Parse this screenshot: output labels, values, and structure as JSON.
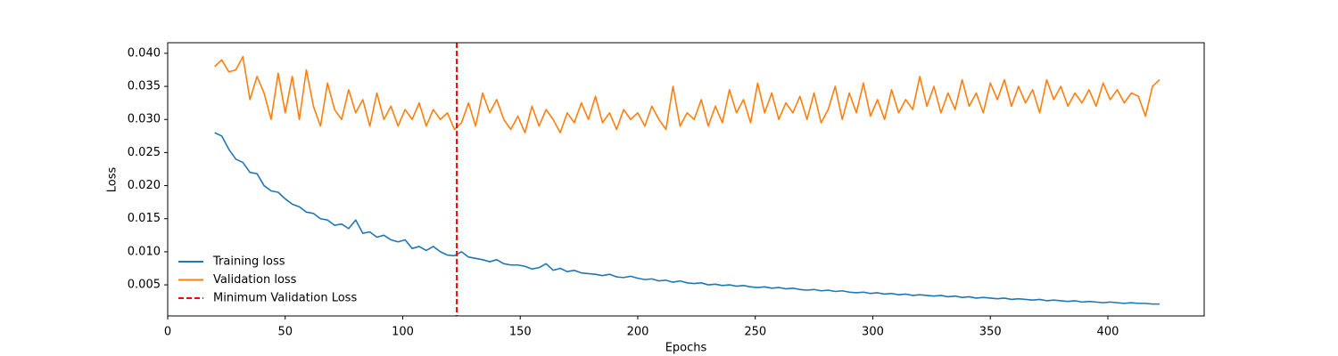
{
  "chart_data": {
    "type": "line",
    "xlabel": "Epochs",
    "ylabel": "Loss",
    "x": [
      20,
      23,
      26,
      29,
      32,
      35,
      38,
      41,
      44,
      47,
      50,
      53,
      56,
      59,
      62,
      65,
      68,
      71,
      74,
      77,
      80,
      83,
      86,
      89,
      92,
      95,
      98,
      101,
      104,
      107,
      110,
      113,
      116,
      119,
      122,
      125,
      128,
      131,
      134,
      137,
      140,
      143,
      146,
      149,
      152,
      155,
      158,
      161,
      164,
      167,
      170,
      173,
      176,
      179,
      182,
      185,
      188,
      191,
      194,
      197,
      200,
      203,
      206,
      209,
      212,
      215,
      218,
      221,
      224,
      227,
      230,
      233,
      236,
      239,
      242,
      245,
      248,
      251,
      254,
      257,
      260,
      263,
      266,
      269,
      272,
      275,
      278,
      281,
      284,
      287,
      290,
      293,
      296,
      299,
      302,
      305,
      308,
      311,
      314,
      317,
      320,
      323,
      326,
      329,
      332,
      335,
      338,
      341,
      344,
      347,
      350,
      353,
      356,
      359,
      362,
      365,
      368,
      371,
      374,
      377,
      380,
      383,
      386,
      389,
      392,
      395,
      398,
      401,
      404,
      407,
      410,
      413,
      416,
      419,
      422
    ],
    "series": [
      {
        "name": "Training loss",
        "color": "#1f77b4",
        "values": [
          0.028,
          0.0275,
          0.0255,
          0.024,
          0.0235,
          0.022,
          0.0218,
          0.02,
          0.0192,
          0.019,
          0.018,
          0.0172,
          0.0168,
          0.016,
          0.0158,
          0.015,
          0.0148,
          0.014,
          0.0142,
          0.0135,
          0.0148,
          0.0128,
          0.013,
          0.0122,
          0.0125,
          0.0118,
          0.0115,
          0.0118,
          0.0105,
          0.0108,
          0.0102,
          0.0108,
          0.01,
          0.0095,
          0.0094,
          0.01,
          0.0092,
          0.009,
          0.0088,
          0.0085,
          0.0088,
          0.0082,
          0.008,
          0.008,
          0.0078,
          0.0074,
          0.0076,
          0.0082,
          0.0072,
          0.0075,
          0.007,
          0.0072,
          0.0068,
          0.0067,
          0.0066,
          0.0064,
          0.0066,
          0.0062,
          0.0061,
          0.0063,
          0.006,
          0.0058,
          0.0059,
          0.0056,
          0.0057,
          0.0054,
          0.0056,
          0.0053,
          0.0052,
          0.0053,
          0.005,
          0.0051,
          0.0049,
          0.005,
          0.0048,
          0.0049,
          0.0047,
          0.0046,
          0.0047,
          0.0045,
          0.0046,
          0.0044,
          0.0045,
          0.0043,
          0.0042,
          0.0043,
          0.0041,
          0.0042,
          0.004,
          0.0041,
          0.0039,
          0.0038,
          0.0039,
          0.0037,
          0.0038,
          0.0036,
          0.0037,
          0.0035,
          0.0036,
          0.0034,
          0.0035,
          0.0034,
          0.0033,
          0.0034,
          0.0032,
          0.0033,
          0.0031,
          0.0032,
          0.003,
          0.0031,
          0.003,
          0.0029,
          0.003,
          0.0028,
          0.0029,
          0.0028,
          0.0027,
          0.0028,
          0.0026,
          0.0027,
          0.0026,
          0.0025,
          0.0026,
          0.0024,
          0.0025,
          0.0024,
          0.0023,
          0.0024,
          0.0023,
          0.0022,
          0.0023,
          0.0022,
          0.0022,
          0.0021,
          0.0021
        ]
      },
      {
        "name": "Validation loss",
        "color": "#ff7f0e",
        "values": [
          0.038,
          0.039,
          0.0372,
          0.0375,
          0.0395,
          0.033,
          0.0365,
          0.034,
          0.03,
          0.037,
          0.031,
          0.0365,
          0.03,
          0.0375,
          0.032,
          0.029,
          0.0355,
          0.0315,
          0.03,
          0.0345,
          0.031,
          0.033,
          0.029,
          0.034,
          0.03,
          0.032,
          0.029,
          0.0315,
          0.03,
          0.0325,
          0.029,
          0.0315,
          0.03,
          0.031,
          0.0285,
          0.0295,
          0.0325,
          0.029,
          0.034,
          0.031,
          0.033,
          0.03,
          0.0285,
          0.0305,
          0.028,
          0.032,
          0.029,
          0.0315,
          0.03,
          0.028,
          0.031,
          0.0295,
          0.0325,
          0.03,
          0.0335,
          0.0295,
          0.031,
          0.0285,
          0.0315,
          0.03,
          0.031,
          0.029,
          0.032,
          0.03,
          0.0285,
          0.035,
          0.029,
          0.031,
          0.03,
          0.033,
          0.029,
          0.032,
          0.0295,
          0.0345,
          0.031,
          0.033,
          0.0295,
          0.0355,
          0.031,
          0.034,
          0.03,
          0.0325,
          0.031,
          0.0335,
          0.03,
          0.034,
          0.0295,
          0.0315,
          0.035,
          0.03,
          0.034,
          0.031,
          0.0355,
          0.0305,
          0.033,
          0.03,
          0.0345,
          0.031,
          0.033,
          0.0315,
          0.0365,
          0.032,
          0.035,
          0.031,
          0.034,
          0.0315,
          0.036,
          0.032,
          0.034,
          0.031,
          0.0355,
          0.033,
          0.036,
          0.032,
          0.035,
          0.0325,
          0.0345,
          0.031,
          0.036,
          0.033,
          0.035,
          0.032,
          0.034,
          0.0325,
          0.0345,
          0.032,
          0.0355,
          0.033,
          0.0345,
          0.0325,
          0.034,
          0.0335,
          0.0305,
          0.035,
          0.036
        ]
      }
    ],
    "vline": {
      "x": 123,
      "name": "Minimum Validation Loss",
      "color": "#ff0000"
    },
    "xlim": [
      0,
      441
    ],
    "ylim": [
      0.0003,
      0.0416
    ],
    "xticks": [
      0,
      50,
      100,
      150,
      200,
      250,
      300,
      350,
      400
    ],
    "yticks": [
      0.005,
      {
        "value": 0.01,
        "label": "0.010"
      },
      0.015,
      {
        "value": 0.02,
        "label": "0.020"
      },
      0.025,
      {
        "value": 0.03,
        "label": "0.030"
      },
      0.035,
      {
        "value": 0.04,
        "label": "0.040"
      }
    ],
    "legend": "lower left",
    "grid": false
  }
}
